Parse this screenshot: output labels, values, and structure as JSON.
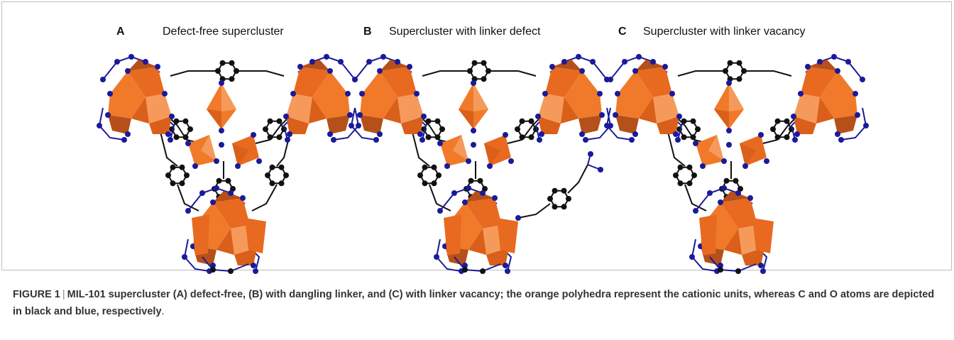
{
  "panels": [
    {
      "letter": "A",
      "title": "Defect-free supercluster"
    },
    {
      "letter": "B",
      "title": "Supercluster with linker defect"
    },
    {
      "letter": "C",
      "title": "Supercluster with linker vacancy"
    }
  ],
  "caption": {
    "label": "FIGURE 1",
    "separator": "|",
    "text": "MIL-101 supercluster (A) defect-free, (B) with dangling linker, and (C) with linker vacancy; the orange polyhedra represent the cationic units, whereas C and O atoms are depicted in black and blue, respectively",
    "end": "."
  }
}
